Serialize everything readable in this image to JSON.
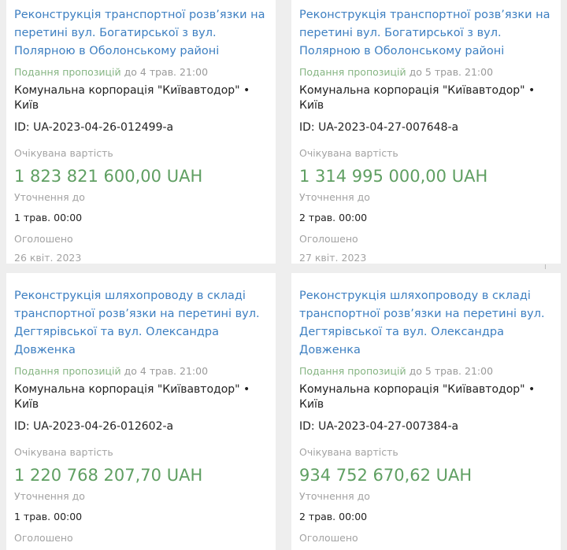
{
  "cards": [
    {
      "title": "Реконструкція транспортної розв’язки на перетині вул. Богатирської з вул. Полярною в Оболонському районі",
      "deadline_label": "Подання пропозицій",
      "deadline_value": "до 4 трав. 21:00",
      "organization": "Комунальна корпорація \"Київавтодор\" • Київ",
      "id": "ID: UA-2023-04-26-012499-a",
      "expected_value_label": "Очікувана вартість",
      "expected_value": "1 823 821 600,00 UAH",
      "clarification_label": "Уточнення до",
      "clarification_date": "1 трав. 00:00",
      "announced_label": "Оголошено",
      "announced_date": "26 квіт. 2023"
    },
    {
      "title": "Реконструкція транспортної розв’язки на перетині вул. Богатирської з вул. Полярною в Оболонському районі",
      "deadline_label": "Подання пропозицій",
      "deadline_value": "до 5 трав. 21:00",
      "organization": "Комунальна корпорація \"Київавтодор\" • Київ",
      "id": "ID: UA-2023-04-27-007648-a",
      "expected_value_label": "Очікувана вартість",
      "expected_value": "1 314 995 000,00 UAH",
      "clarification_label": "Уточнення до",
      "clarification_date": "2 трав. 00:00",
      "announced_label": "Оголошено",
      "announced_date": "27 квіт. 2023"
    },
    {
      "title": "Реконструкція шляхопроводу в складі транспортної розв’язки на перетині вул. Дегтярівської та вул. Олександра Довженка",
      "deadline_label": "Подання пропозицій",
      "deadline_value": "до 4 трав. 21:00",
      "organization": "Комунальна корпорація \"Київавтодор\" • Київ",
      "id": "ID: UA-2023-04-26-012602-a",
      "expected_value_label": "Очікувана вартість",
      "expected_value": "1 220 768 207,70 UAH",
      "clarification_label": "Уточнення до",
      "clarification_date": "1 трав. 00:00",
      "announced_label": "Оголошено"
    },
    {
      "title": "Реконструкція шляхопроводу в складі транспортної розв’язки на перетині вул. Дегтярівської та вул. Олександра Довженка",
      "deadline_label": "Подання пропозицій",
      "deadline_value": "до 5 трав. 21:00",
      "organization": "Комунальна корпорація \"Київавтодор\" • Київ",
      "id": "ID: UA-2023-04-27-007384-a",
      "expected_value_label": "Очікувана вартість",
      "expected_value": "934 752 670,62 UAH",
      "clarification_label": "Уточнення до",
      "clarification_date": "2 трав. 00:00",
      "announced_label": "Оголошено"
    }
  ],
  "colors": {
    "title": "#3d7fc1",
    "price": "#5f9f62",
    "deadline": "#86b583",
    "muted": "#a3a3a3"
  }
}
